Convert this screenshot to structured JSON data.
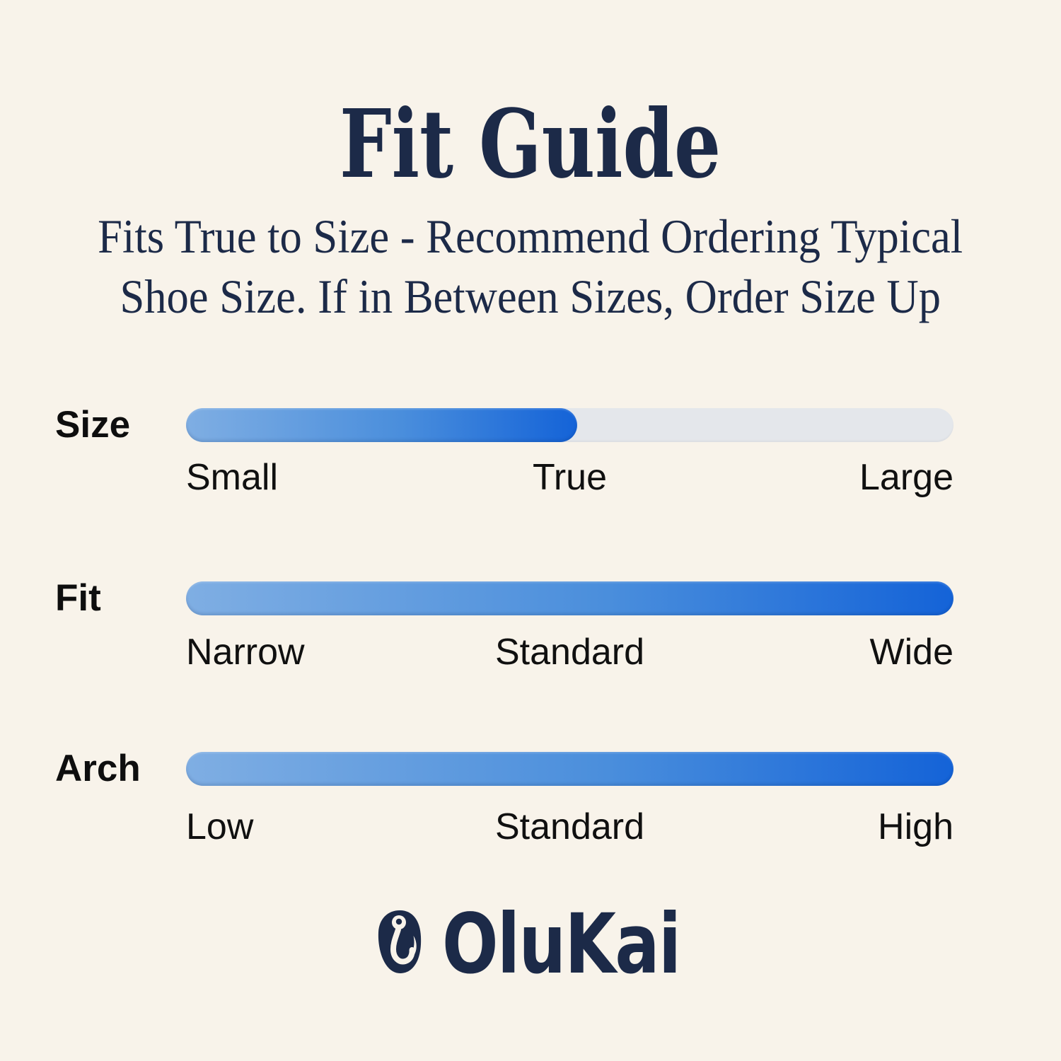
{
  "title": "Fit Guide",
  "subtitle": {
    "line1": "Fits True to Size - Recommend Ordering Typical",
    "line2": "Shoe Size. If in Between Sizes, Order Size Up"
  },
  "sliders": [
    {
      "label": "Size",
      "fill_percent": 51,
      "scale": {
        "left": "Small",
        "center": "True",
        "right": "Large"
      }
    },
    {
      "label": "Fit",
      "fill_percent": 100,
      "scale": {
        "left": "Narrow",
        "center": "Standard",
        "right": "Wide"
      }
    },
    {
      "label": "Arch",
      "fill_percent": 100,
      "scale": {
        "left": "Low",
        "center": "Standard",
        "right": "High"
      }
    }
  ],
  "logo": {
    "brand": "OluKai",
    "icon": "fish-hook-icon"
  },
  "colors": {
    "background": "#F8F3EA",
    "navy": "#1C2A48",
    "label_black": "#101010",
    "track_gray": "#E4E7EB",
    "bar_gradient_start": "#7FAEE3",
    "bar_gradient_end": "#1463D8"
  },
  "chart_data": {
    "type": "bar",
    "title": "Fit Guide",
    "subtitle": "Fits True to Size - Recommend Ordering Typical Shoe Size. If in Between Sizes, Order Size Up",
    "categories": [
      "Size",
      "Fit",
      "Arch"
    ],
    "series": [
      {
        "name": "Size",
        "scale_labels": [
          "Small",
          "True",
          "Large"
        ],
        "fill_percent": 51,
        "indicated_value": "True"
      },
      {
        "name": "Fit",
        "scale_labels": [
          "Narrow",
          "Standard",
          "Wide"
        ],
        "fill_percent": 100
      },
      {
        "name": "Arch",
        "scale_labels": [
          "Low",
          "Standard",
          "High"
        ],
        "fill_percent": 100
      }
    ],
    "xlim": [
      0,
      100
    ],
    "orientation": "horizontal",
    "grid": false,
    "legend": false
  }
}
